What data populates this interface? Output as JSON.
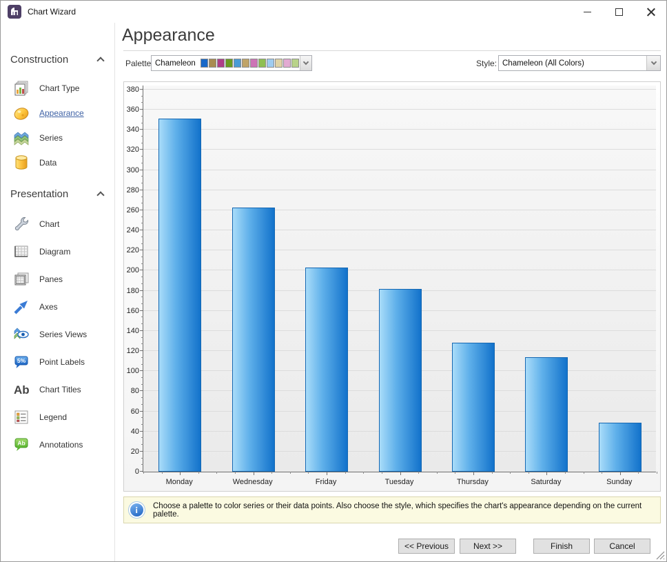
{
  "window": {
    "title": "Chart Wizard"
  },
  "sidebar": {
    "sections": [
      {
        "title": "Construction",
        "items": [
          {
            "label": "Chart Type"
          },
          {
            "label": "Appearance"
          },
          {
            "label": "Series"
          },
          {
            "label": "Data"
          }
        ]
      },
      {
        "title": "Presentation",
        "items": [
          {
            "label": "Chart"
          },
          {
            "label": "Diagram"
          },
          {
            "label": "Panes"
          },
          {
            "label": "Axes"
          },
          {
            "label": "Series Views"
          },
          {
            "label": "Point Labels"
          },
          {
            "label": "Chart Titles"
          },
          {
            "label": "Legend"
          },
          {
            "label": "Annotations"
          }
        ]
      }
    ]
  },
  "main": {
    "heading": "Appearance",
    "palette": {
      "label": "Palette:",
      "value": "Chameleon",
      "swatches": [
        "#1868c8",
        "#a98c50",
        "#af3f88",
        "#6b9c22",
        "#4a9bd5",
        "#c0a468",
        "#cd74b6",
        "#8fbf53",
        "#9fccf0",
        "#dfd3a5",
        "#e2aad2",
        "#b8d389"
      ]
    },
    "style": {
      "label": "Style:",
      "value": "Chameleon (All Colors)"
    }
  },
  "chart_data": {
    "type": "bar",
    "title": "",
    "xlabel": "",
    "ylabel": "",
    "categories": [
      "Monday",
      "Wednesday",
      "Friday",
      "Tuesday",
      "Thursday",
      "Saturday",
      "Sunday"
    ],
    "values": [
      351,
      263,
      203,
      182,
      128,
      114,
      49
    ],
    "ylim": [
      0,
      380
    ],
    "ytick_step": 20,
    "grid": "horizontal",
    "legend": "none",
    "bar_gradient": [
      "#a9dcf9",
      "#1272cb"
    ],
    "bar_border": "#1467b2"
  },
  "info_bar": {
    "text": "Choose a palette to color series or their data points. Also choose the style, which specifies the chart's appearance depending on the current palette."
  },
  "footer": {
    "buttons": {
      "previous": "<< Previous",
      "next": "Next >>",
      "finish": "Finish",
      "cancel": "Cancel"
    }
  }
}
